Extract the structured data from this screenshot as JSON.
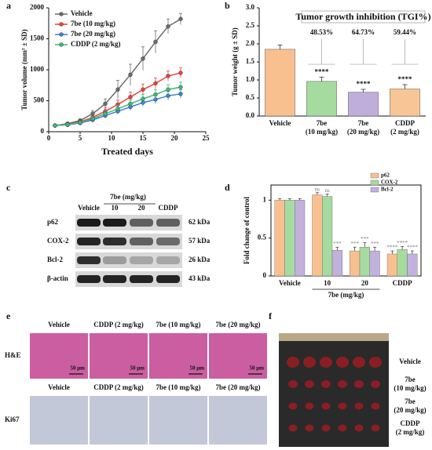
{
  "chart_data": [
    {
      "type": "line",
      "letter": "a",
      "xlabel": "Treated days",
      "ylabel": "Tumor volume (mm³ ± SD)",
      "x": [
        1,
        3,
        5,
        7,
        9,
        11,
        13,
        15,
        17,
        19,
        21
      ],
      "xlim": [
        0,
        25
      ],
      "xticks": [
        0,
        5,
        10,
        15,
        20,
        25
      ],
      "ylim": [
        0,
        2000
      ],
      "yticks": [
        0,
        500,
        1000,
        1500,
        2000
      ],
      "legend": "upper-left",
      "series": [
        {
          "name": "Vehicle",
          "color": "#6b6b6b",
          "values": [
            100,
            130,
            180,
            290,
            450,
            680,
            920,
            1180,
            1450,
            1700,
            1820
          ],
          "errors": [
            10,
            15,
            25,
            50,
            80,
            150,
            170,
            190,
            180,
            120,
            90
          ]
        },
        {
          "name": "7be (10 mg/kg)",
          "color": "#e8413c",
          "values": [
            100,
            120,
            160,
            230,
            330,
            440,
            560,
            680,
            780,
            900,
            950
          ],
          "errors": [
            10,
            12,
            20,
            35,
            60,
            70,
            80,
            90,
            90,
            80,
            80
          ]
        },
        {
          "name": "7be (20 mg/kg)",
          "color": "#3a7fd5",
          "values": [
            100,
            110,
            140,
            190,
            260,
            330,
            400,
            470,
            520,
            580,
            610
          ],
          "errors": [
            10,
            10,
            15,
            25,
            40,
            50,
            60,
            60,
            70,
            70,
            70
          ]
        },
        {
          "name": "CDDP (2 mg/kg)",
          "color": "#3cb878",
          "values": [
            100,
            115,
            150,
            210,
            290,
            370,
            450,
            530,
            600,
            680,
            720
          ],
          "errors": [
            10,
            12,
            18,
            30,
            45,
            55,
            65,
            70,
            75,
            80,
            80
          ]
        }
      ]
    },
    {
      "type": "bar",
      "letter": "b",
      "ylabel": "Tumor weight (g ± SD)",
      "categories": [
        [
          "Vehicle"
        ],
        [
          "7be",
          "(10 mg/kg)"
        ],
        [
          "7be",
          "(20 mg/kg)"
        ],
        [
          "CDDP",
          "(2 mg/kg)"
        ]
      ],
      "values": [
        1.85,
        0.96,
        0.66,
        0.75
      ],
      "errors": [
        0.12,
        0.12,
        0.08,
        0.12
      ],
      "colors": [
        "#f9c08f",
        "#a6dba0",
        "#bfaedb",
        "#f7c696"
      ],
      "significance": [
        "****",
        "****",
        "****"
      ],
      "annotation": "Tumor growth inhibition (TGI%)",
      "tgi_labels": [
        "48.53%",
        "64.73%",
        "59.44%"
      ],
      "ylim": [
        0,
        3
      ],
      "yticks": [
        {
          "value": 0,
          "label": "0.0"
        },
        0.5,
        {
          "value": 1,
          "label": "1.0"
        },
        1.5,
        {
          "value": 2,
          "label": "2.0"
        },
        2.5,
        {
          "value": 3,
          "label": "3.0"
        }
      ]
    },
    {
      "type": "bar",
      "letter": "d",
      "ylabel": "Fold change of control",
      "categories": [
        "Vehicle",
        "10",
        "20",
        "CDDP"
      ],
      "group_label": "7be (mg/kg)",
      "legend": "upper-right",
      "series": [
        {
          "name": "p62",
          "color": "#f9c08f",
          "values": [
            1,
            1.07,
            0.33,
            0.29
          ],
          "errors": [
            0.02,
            0.03,
            0.05,
            0.04
          ],
          "significance": [
            null,
            "ns",
            "***",
            "****"
          ]
        },
        {
          "name": "COX-2",
          "color": "#a6dba0",
          "values": [
            1,
            1.05,
            0.38,
            0.35
          ],
          "errors": [
            0.02,
            0.03,
            0.06,
            0.04
          ],
          "significance": [
            null,
            "ns",
            "***",
            "****"
          ]
        },
        {
          "name": "Bcl-2",
          "color": "#c2b0dd",
          "values": [
            1,
            0.34,
            0.33,
            0.29
          ],
          "errors": [
            0.02,
            0.04,
            0.05,
            0.04
          ],
          "significance": [
            null,
            "***",
            "***",
            "****"
          ]
        }
      ],
      "ylim": [
        0,
        1.2
      ],
      "yticks": [
        0,
        0.5,
        1
      ]
    }
  ],
  "blot": {
    "letter": "c",
    "header": "7be (mg/kg)",
    "columns": [
      "Vehicle",
      "10",
      "20",
      "CDDP"
    ],
    "rows": [
      {
        "name": "p62",
        "size": "62 kDa"
      },
      {
        "name": "COX-2",
        "size": "57 kDa"
      },
      {
        "name": "Bcl-2",
        "size": "26 kDa"
      },
      {
        "name": "β-actin",
        "size": "43 kDa"
      }
    ]
  },
  "histology": {
    "letter": "e",
    "columns": [
      "Vehicle",
      "CDDP (2 mg/kg)",
      "7be (10 mg/kg)",
      "7be (20 mg/kg)"
    ],
    "rows": [
      "H&E",
      "Ki67"
    ],
    "scale_bar": "50 μm"
  },
  "tumors": {
    "letter": "f",
    "rows": [
      [
        "Vehicle"
      ],
      [
        "7be",
        "(10 mg/kg)"
      ],
      [
        "7be",
        "(20 mg/kg)"
      ],
      [
        "CDDP",
        "(2 mg/kg)"
      ]
    ]
  }
}
